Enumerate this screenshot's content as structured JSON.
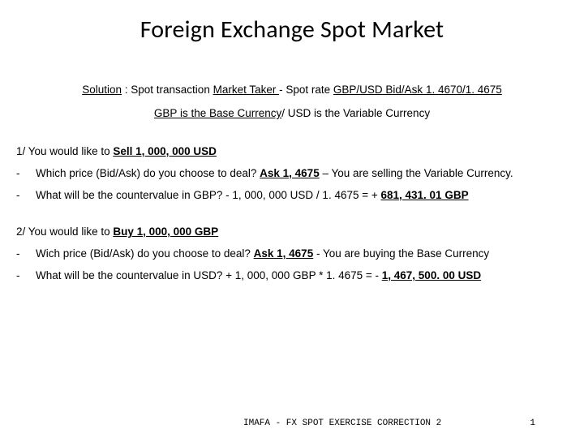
{
  "title": "Foreign Exchange Spot Market",
  "sub1": {
    "solution": "Solution",
    "colon_spot": " : Spot transaction ",
    "market_taker": "Market Taker ",
    "dash_spot_rate": "- Spot rate ",
    "pair": "GBP/USD Bid/Ask 1. 4670/1. 4675"
  },
  "sub2": {
    "base": "GBP is the Base Currency",
    "slash_usd": "/ USD is the Variable Currency"
  },
  "section1": {
    "prefix": "1/ You would like to ",
    "action": "Sell 1, 000, 000 USD",
    "b1_q": "Which price (Bid/Ask) do you choose to deal? ",
    "b1_a": "Ask 1, 4675",
    "b1_rest": " – You are selling the Variable Currency.",
    "b2_q": "What will be the countervalue in GBP? - 1, 000, 000  USD / 1. 4675 = + ",
    "b2_a": "681, 431. 01 GBP"
  },
  "section2": {
    "prefix": "2/ You would like to ",
    "action": "Buy 1, 000, 000 GBP",
    "b1_q": "Wich price (Bid/Ask) do you choose to deal? ",
    "b1_a": "Ask 1, 4675",
    "b1_rest": " - You are buying the Base Currency",
    "b2_q": "What will be the countervalue in USD? + 1, 000, 000 GBP * 1. 4675 =  - ",
    "b2_a": "1, 467, 500. 00 USD"
  },
  "footer": {
    "text": "IMAFA - FX SPOT EXERCISE CORRECTION 2",
    "page": "1"
  },
  "colors": {
    "text": "#000000",
    "background": "#ffffff"
  }
}
